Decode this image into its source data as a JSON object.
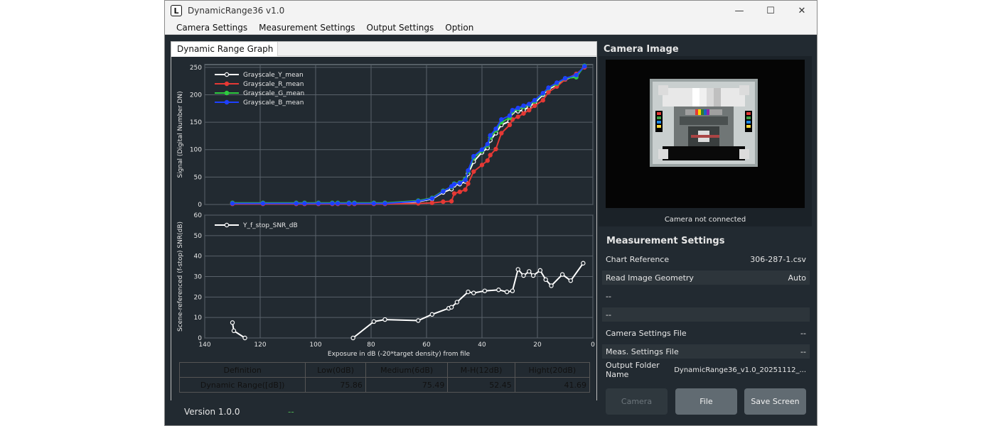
{
  "window": {
    "title": "DynamicRange36 v1.0",
    "icon_letter": "L"
  },
  "menu": [
    "Camera Settings",
    "Measurement Settings",
    "Output Settings",
    "Option"
  ],
  "graph_tab": "Dynamic Range Graph",
  "chart_data": [
    {
      "type": "line",
      "ylabel": "Signal (Digital Number DN)",
      "xlim": [
        140,
        0
      ],
      "ylim": [
        0,
        255
      ],
      "x_ticks": [
        140,
        120,
        100,
        80,
        60,
        40,
        20,
        0
      ],
      "y_ticks": [
        0,
        50,
        100,
        150,
        200,
        250
      ],
      "grid": true,
      "legend_position": "top-left",
      "series": [
        {
          "name": "Grayscale_Y_mean",
          "color": "#ffffff",
          "x": [
            130,
            119,
            107,
            104,
            99,
            94,
            92,
            88,
            86,
            79,
            75,
            63,
            58,
            54,
            51,
            50,
            48,
            46,
            45,
            43,
            40,
            38,
            37,
            35,
            33,
            30,
            29,
            27,
            25,
            23,
            21,
            18,
            16,
            13,
            10,
            6,
            3
          ],
          "y": [
            2,
            2,
            2,
            2,
            2,
            2,
            2,
            2,
            2,
            2,
            2,
            5,
            10,
            22,
            28,
            35,
            37,
            42,
            56,
            78,
            95,
            103,
            117,
            130,
            145,
            152,
            168,
            170,
            172,
            178,
            185,
            200,
            210,
            218,
            228,
            235,
            252
          ]
        },
        {
          "name": "Grayscale_R_mean",
          "color": "#e53935",
          "x": [
            130,
            119,
            107,
            104,
            99,
            94,
            92,
            88,
            86,
            79,
            75,
            63,
            58,
            54,
            51,
            50,
            48,
            46,
            45,
            43,
            40,
            38,
            37,
            35,
            33,
            30,
            29,
            27,
            25,
            23,
            21,
            18,
            16,
            13,
            10,
            6,
            3
          ],
          "y": [
            1,
            1,
            1,
            1,
            1,
            1,
            1,
            1,
            1,
            1,
            1,
            2,
            3,
            5,
            6,
            20,
            23,
            27,
            38,
            60,
            72,
            80,
            90,
            101,
            130,
            145,
            155,
            160,
            166,
            172,
            180,
            190,
            205,
            215,
            228,
            238,
            250
          ]
        },
        {
          "name": "Grayscale_G_mean",
          "color": "#2ecc40",
          "x": [
            130,
            119,
            107,
            104,
            99,
            94,
            92,
            88,
            86,
            79,
            75,
            63,
            58,
            54,
            51,
            50,
            48,
            46,
            45,
            43,
            40,
            38,
            37,
            35,
            33,
            30,
            29,
            27,
            25,
            23,
            21,
            18,
            16,
            13,
            10,
            6,
            3
          ],
          "y": [
            3,
            3,
            3,
            3,
            3,
            3,
            3,
            3,
            3,
            3,
            3,
            7,
            12,
            25,
            32,
            38,
            40,
            47,
            60,
            85,
            98,
            108,
            122,
            135,
            150,
            158,
            170,
            174,
            178,
            182,
            188,
            202,
            212,
            220,
            230,
            232,
            253
          ]
        },
        {
          "name": "Grayscale_B_mean",
          "color": "#1e40ff",
          "x": [
            130,
            119,
            107,
            104,
            99,
            94,
            92,
            88,
            86,
            79,
            75,
            63,
            58,
            54,
            51,
            50,
            48,
            46,
            45,
            43,
            40,
            38,
            37,
            35,
            33,
            30,
            29,
            27,
            25,
            23,
            21,
            18,
            16,
            13,
            10,
            6,
            3
          ],
          "y": [
            2,
            2,
            2,
            2,
            2,
            2,
            2,
            2,
            2,
            2,
            2,
            6,
            11,
            24,
            33,
            37,
            39,
            45,
            62,
            88,
            100,
            110,
            126,
            138,
            155,
            162,
            172,
            176,
            180,
            183,
            190,
            203,
            213,
            222,
            230,
            236,
            252
          ]
        }
      ]
    },
    {
      "type": "line",
      "xlabel": "Exposure in dB (-20*target density)  from file",
      "ylabel": "Scene-referenced (f-stop) SNR(dB)",
      "xlim": [
        140,
        0
      ],
      "ylim": [
        0,
        60
      ],
      "x_ticks": [
        140,
        120,
        100,
        80,
        60,
        40,
        20,
        0
      ],
      "y_ticks": [
        0,
        10,
        20,
        30,
        40,
        50,
        60
      ],
      "grid": true,
      "legend_position": "top-left",
      "series": [
        {
          "name": "Y_f_stop_SNR_dB",
          "color": "#ffffff",
          "x": [
            130,
            129.5,
            125.5,
            null,
            86.5,
            79,
            75,
            63,
            58,
            52,
            51,
            49,
            45,
            43,
            39,
            34,
            31,
            29,
            27,
            25,
            23,
            21.5,
            19,
            17,
            15,
            11,
            8,
            3.5
          ],
          "y": [
            7.5,
            3.5,
            0,
            null,
            0,
            8,
            9,
            8.5,
            11.5,
            14.5,
            15,
            17.5,
            22.5,
            22,
            23,
            23.5,
            22.5,
            23,
            33.5,
            30.5,
            32.5,
            30.5,
            33,
            28.5,
            25.5,
            31,
            28,
            36.5
          ]
        }
      ]
    }
  ],
  "dr_table": {
    "headers": [
      "Definition",
      "Low(0dB)",
      "Medium(6dB)",
      "M-H(12dB)",
      "Hight(20dB)"
    ],
    "row_label": "Dynamic Range([dB])",
    "values": [
      "75.86",
      "75.49",
      "52.45",
      "41.69"
    ]
  },
  "version": {
    "label": "Version 1.0.0",
    "status": "--"
  },
  "camera": {
    "title": "Camera Image",
    "status": "Camera not connected"
  },
  "measurement": {
    "title": "Measurement Settings",
    "rows": [
      {
        "label": "Chart Reference",
        "value": "306-287-1.csv"
      },
      {
        "label": "Read Image Geometry",
        "value": "Auto"
      },
      {
        "label": "--",
        "value": ""
      },
      {
        "label": "--",
        "value": ""
      },
      {
        "label": "Camera Settings File",
        "value": "--"
      },
      {
        "label": "Meas. Settings File",
        "value": "--"
      },
      {
        "label": "Output Folder Name",
        "value": "DynamicRange36_v1.0_20251112_..."
      }
    ]
  },
  "buttons": {
    "camera": "Camera",
    "file": "File",
    "save": "Save Screen"
  },
  "colors": {
    "window_bg": "#222a31",
    "button_bg": "#616b72",
    "button_disabled_bg": "#2f383e",
    "status_green": "#4caf50"
  }
}
